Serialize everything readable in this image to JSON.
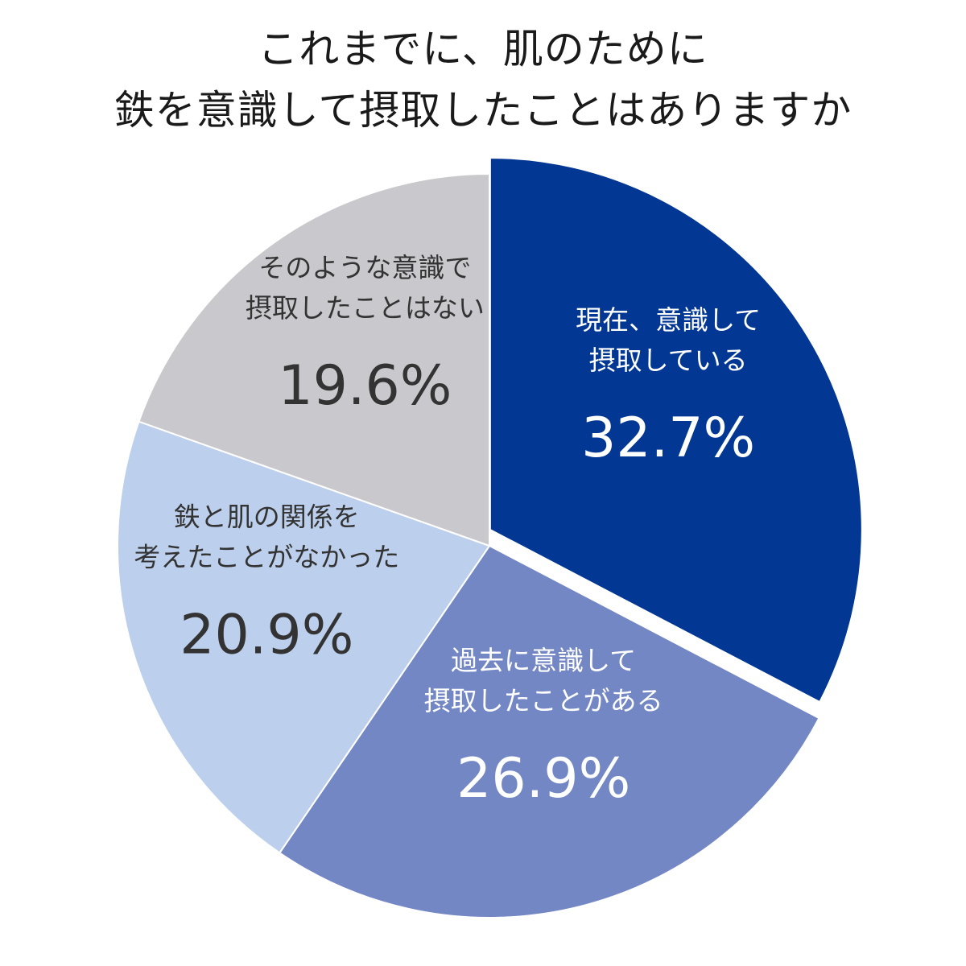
{
  "chart_data": {
    "type": "pie",
    "title_lines": [
      "これまでに、肌のために",
      "鉄を意識して摂取したことはありますか"
    ],
    "slices": [
      {
        "label_lines": [
          "現在、意識して",
          "摂取している"
        ],
        "value": 32.7,
        "value_text": "32.7%",
        "color": "#023794",
        "text_color": "#ffffff"
      },
      {
        "label_lines": [
          "過去に意識して",
          "摂取したことがある"
        ],
        "value": 26.9,
        "value_text": "26.9%",
        "color": "#7487c5",
        "text_color": "#ffffff"
      },
      {
        "label_lines": [
          "鉄と肌の関係を",
          "考えたことがなかった"
        ],
        "value": 20.9,
        "value_text": "20.9%",
        "color": "#bccfec",
        "text_color": "#333333"
      },
      {
        "label_lines": [
          "そのような意識で",
          "摂取したことはない"
        ],
        "value": 19.6,
        "value_text": "19.6%",
        "color": "#c9c8cc",
        "text_color": "#333333"
      }
    ]
  }
}
